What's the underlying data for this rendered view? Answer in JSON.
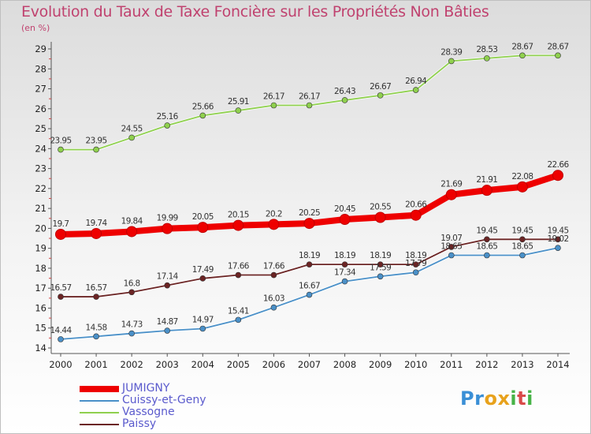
{
  "title": "Evolution du Taux de Taxe Foncière sur les Propriétés Non Bâties",
  "unit": "(en %)",
  "logo": {
    "letters": [
      "P",
      "r",
      "o",
      "x",
      "i",
      "t",
      "i"
    ],
    "colors": [
      "#3a8fd6",
      "#3a8fd6",
      "#e8a21c",
      "#e8a21c",
      "#47b347",
      "#d94a4a",
      "#47b347"
    ]
  },
  "chart_data": {
    "type": "line",
    "title": "Evolution du Taux de Taxe Foncière sur les Propriétés Non Bâties",
    "ylabel": "(en %)",
    "x": [
      "2000",
      "2001",
      "2002",
      "2003",
      "2004",
      "2005",
      "2006",
      "2007",
      "2008",
      "2009",
      "2010",
      "2011",
      "2012",
      "2013",
      "2014"
    ],
    "ylim": [
      14,
      29
    ],
    "yticks": [
      "14",
      "15",
      "16",
      "17",
      "18",
      "19",
      "20",
      "21",
      "22",
      "23",
      "24",
      "25",
      "26",
      "27",
      "28",
      "29"
    ],
    "grid": false,
    "legend": "bottom-left",
    "series": [
      {
        "name": "JUMIGNY",
        "color": "#ee0000",
        "values": [
          19.7,
          19.74,
          19.84,
          19.99,
          20.05,
          20.15,
          20.2,
          20.25,
          20.45,
          20.55,
          20.66,
          21.69,
          21.91,
          22.08,
          22.66
        ],
        "labels": [
          "19.7",
          "19.74",
          "19.84",
          "19.99",
          "20.05",
          "20.15",
          "20.2",
          "20.25",
          "20.45",
          "20.55",
          "20.66",
          "21.69",
          "21.91",
          "22.08",
          "22.66"
        ]
      },
      {
        "name": "Cuissy-et-Geny",
        "color": "#4a90c8",
        "values": [
          14.44,
          14.58,
          14.73,
          14.87,
          14.97,
          15.41,
          16.03,
          16.67,
          17.34,
          17.59,
          17.79,
          18.65,
          18.65,
          18.65,
          19.02
        ],
        "labels": [
          "14.44",
          "14.58",
          "14.73",
          "14.87",
          "14.97",
          "15.41",
          "16.03",
          "16.67",
          "17.34",
          "17.59",
          "17.79",
          "18.65",
          "18.65",
          "18.65",
          "19.02"
        ]
      },
      {
        "name": "Vassogne",
        "color": "#8fd04e",
        "values": [
          23.95,
          23.95,
          24.55,
          25.16,
          25.66,
          25.91,
          26.17,
          26.17,
          26.43,
          26.67,
          26.94,
          28.39,
          28.53,
          28.67,
          28.67
        ],
        "labels": [
          "23.95",
          "23.95",
          "24.55",
          "25.16",
          "25.66",
          "25.91",
          "26.17",
          "26.17",
          "26.43",
          "26.67",
          "26.94",
          "28.39",
          "28.53",
          "28.67",
          "28.67"
        ]
      },
      {
        "name": "Paissy",
        "color": "#6b2424",
        "values": [
          16.57,
          16.57,
          16.8,
          17.14,
          17.49,
          17.66,
          17.66,
          18.19,
          18.19,
          18.19,
          18.19,
          19.07,
          19.45,
          19.45,
          19.45
        ],
        "labels": [
          "16.57",
          "16.57",
          "16.8",
          "17.14",
          "17.49",
          "17.66",
          "17.66",
          "18.19",
          "18.19",
          "18.19",
          "18.19",
          "19.07",
          "19.45",
          "19.45",
          "19.45"
        ]
      }
    ]
  }
}
